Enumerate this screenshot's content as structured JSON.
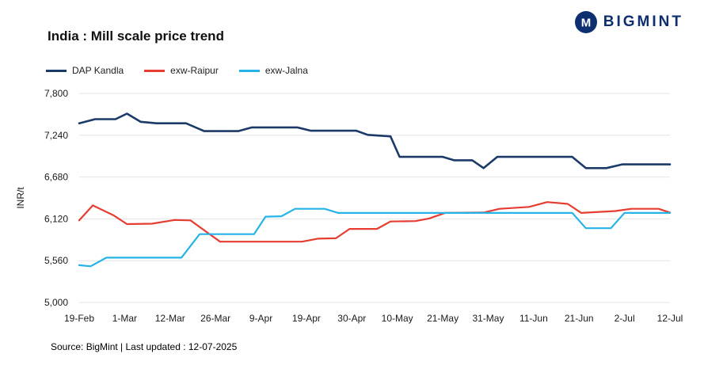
{
  "title": "India : Mill scale price trend",
  "logo": {
    "text": "BIGMINT",
    "icon_letter": "M",
    "color": "#0d2f6e"
  },
  "source": "Source: BigMint | Last updated : 12-07-2025",
  "chart_data": {
    "type": "line",
    "title": "India : Mill scale price trend",
    "xlabel": "",
    "ylabel": "INR/t",
    "ylim": [
      5000,
      7800
    ],
    "grid": "horizontal",
    "grid_color": "#e4e4e4",
    "legend_position": "top-left",
    "y_ticks": [
      {
        "value": 5000,
        "label": "5,000"
      },
      {
        "value": 5560,
        "label": "5,560"
      },
      {
        "value": 6120,
        "label": "6,120"
      },
      {
        "value": 6680,
        "label": "6,680"
      },
      {
        "value": 7240,
        "label": "7,240"
      },
      {
        "value": 7800,
        "label": "7,800"
      }
    ],
    "x_tick_labels": [
      "19-Feb",
      "1-Mar",
      "12-Mar",
      "26-Mar",
      "9-Apr",
      "19-Apr",
      "30-Apr",
      "10-May",
      "21-May",
      "31-May",
      "11-Jun",
      "21-Jun",
      "2-Jul",
      "12-Jul"
    ],
    "x_unit": "tick-index (0 = 19-Feb ... 13 = 12-Jul, fractional = dates between ticks)",
    "series": [
      {
        "name": "DAP Kandla",
        "color": "#1b3a68",
        "width": 2.6,
        "points": [
          [
            0,
            7400
          ],
          [
            0.35,
            7455
          ],
          [
            0.8,
            7455
          ],
          [
            1.05,
            7530
          ],
          [
            1.35,
            7420
          ],
          [
            1.7,
            7400
          ],
          [
            2.35,
            7400
          ],
          [
            2.75,
            7295
          ],
          [
            3.5,
            7295
          ],
          [
            3.8,
            7345
          ],
          [
            4.8,
            7345
          ],
          [
            5.1,
            7300
          ],
          [
            6.1,
            7300
          ],
          [
            6.35,
            7245
          ],
          [
            6.85,
            7225
          ],
          [
            7.05,
            6950
          ],
          [
            8.0,
            6950
          ],
          [
            8.25,
            6905
          ],
          [
            8.65,
            6905
          ],
          [
            8.9,
            6800
          ],
          [
            9.2,
            6950
          ],
          [
            10.85,
            6950
          ],
          [
            11.15,
            6800
          ],
          [
            11.6,
            6800
          ],
          [
            11.95,
            6850
          ],
          [
            13,
            6850
          ]
        ]
      },
      {
        "name": "exw-Raipur",
        "color": "#e63c32",
        "width": 2.2,
        "points": [
          [
            0,
            6100
          ],
          [
            0.3,
            6300
          ],
          [
            0.75,
            6170
          ],
          [
            1.05,
            6050
          ],
          [
            1.6,
            6055
          ],
          [
            2.1,
            6105
          ],
          [
            2.45,
            6100
          ],
          [
            2.8,
            5945
          ],
          [
            3.1,
            5815
          ],
          [
            4.9,
            5815
          ],
          [
            5.25,
            5855
          ],
          [
            5.65,
            5860
          ],
          [
            5.95,
            5985
          ],
          [
            6.55,
            5985
          ],
          [
            6.85,
            6085
          ],
          [
            7.4,
            6090
          ],
          [
            7.7,
            6125
          ],
          [
            8.05,
            6200
          ],
          [
            8.9,
            6205
          ],
          [
            9.25,
            6255
          ],
          [
            9.9,
            6280
          ],
          [
            10.3,
            6345
          ],
          [
            10.75,
            6320
          ],
          [
            11.05,
            6200
          ],
          [
            11.8,
            6225
          ],
          [
            12.15,
            6255
          ],
          [
            12.75,
            6255
          ],
          [
            13,
            6205
          ]
        ]
      },
      {
        "name": "exw-Jalna",
        "color": "#26b3e8",
        "width": 2.2,
        "points": [
          [
            0,
            5500
          ],
          [
            0.25,
            5485
          ],
          [
            0.6,
            5600
          ],
          [
            2.25,
            5600
          ],
          [
            2.65,
            5915
          ],
          [
            3.85,
            5915
          ],
          [
            4.1,
            6150
          ],
          [
            4.45,
            6155
          ],
          [
            4.75,
            6255
          ],
          [
            5.4,
            6255
          ],
          [
            5.7,
            6200
          ],
          [
            10.85,
            6200
          ],
          [
            11.15,
            5995
          ],
          [
            11.7,
            5995
          ],
          [
            12.0,
            6200
          ],
          [
            13,
            6200
          ]
        ]
      }
    ]
  }
}
